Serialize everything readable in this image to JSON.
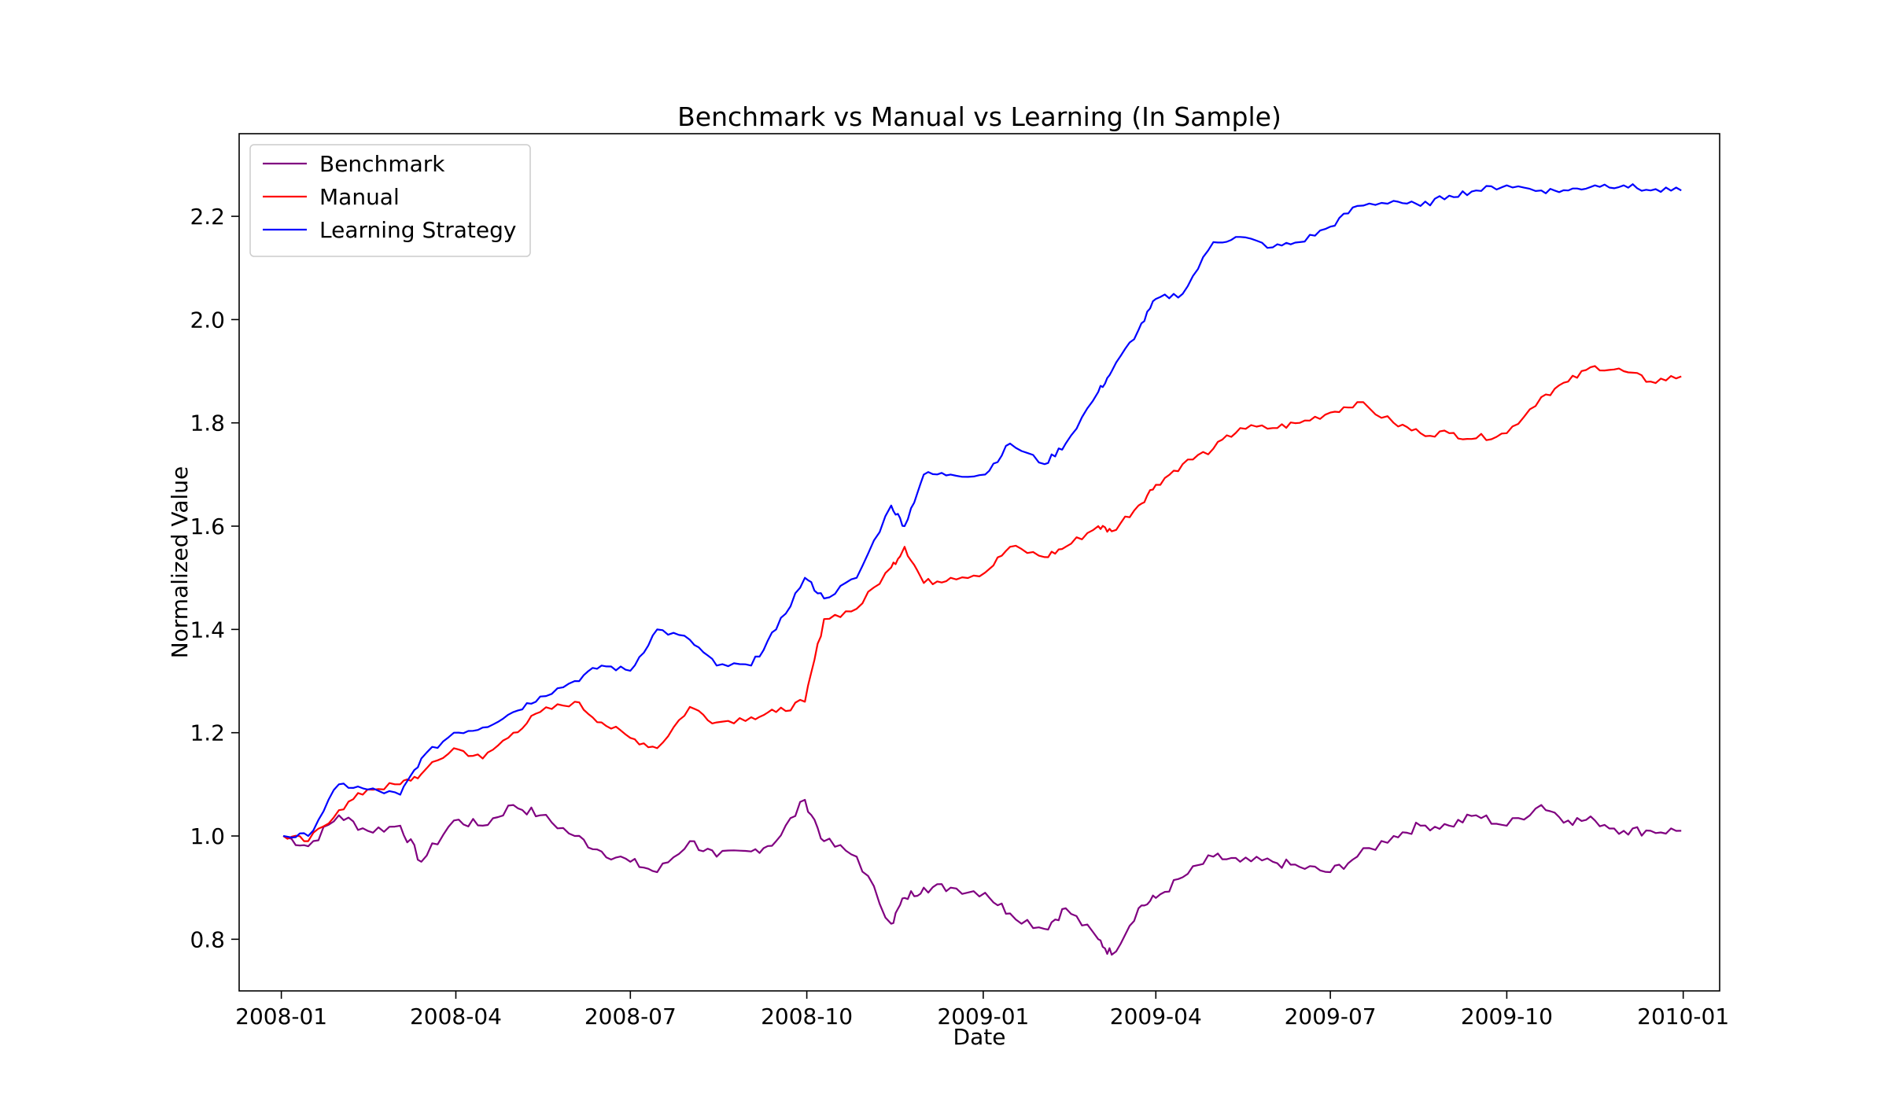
{
  "chart_data": {
    "type": "line",
    "title": "Benchmark vs Manual vs Learning (In Sample)",
    "xlabel": "Date",
    "ylabel": "Normalized Value",
    "xlim": [
      "2007-12-10",
      "2010-01-20"
    ],
    "ylim": [
      0.7,
      2.36
    ],
    "x_ticks": [
      "2008-01",
      "2008-04",
      "2008-07",
      "2008-10",
      "2009-01",
      "2009-04",
      "2009-07",
      "2009-10",
      "2010-01"
    ],
    "y_ticks": [
      "0.8",
      "1.0",
      "1.2",
      "1.4",
      "1.6",
      "1.8",
      "2.0",
      "2.2"
    ],
    "grid": false,
    "legend_position": "upper-left",
    "series": [
      {
        "name": "Benchmark",
        "color": "#800080",
        "x": [
          "2008-01-02",
          "2008-01-15",
          "2008-01-31",
          "2008-02-15",
          "2008-03-03",
          "2008-03-14",
          "2008-03-31",
          "2008-04-15",
          "2008-05-01",
          "2008-05-15",
          "2008-06-02",
          "2008-06-16",
          "2008-07-01",
          "2008-07-15",
          "2008-08-01",
          "2008-08-15",
          "2008-09-02",
          "2008-09-15",
          "2008-09-30",
          "2008-10-10",
          "2008-10-27",
          "2008-11-14",
          "2008-11-21",
          "2008-12-01",
          "2008-12-15",
          "2009-01-02",
          "2009-01-15",
          "2009-02-02",
          "2009-02-13",
          "2009-03-02",
          "2009-03-09",
          "2009-03-23",
          "2009-04-01",
          "2009-04-15",
          "2009-05-01",
          "2009-05-15",
          "2009-06-01",
          "2009-06-15",
          "2009-07-01",
          "2009-07-15",
          "2009-08-03",
          "2009-08-17",
          "2009-09-01",
          "2009-09-15",
          "2009-10-01",
          "2009-10-19",
          "2009-11-02",
          "2009-11-16",
          "2009-12-01",
          "2009-12-15",
          "2009-12-31"
        ],
        "values": [
          1.0,
          0.98,
          1.04,
          1.01,
          1.02,
          0.95,
          1.03,
          1.02,
          1.06,
          1.04,
          1.0,
          0.97,
          0.95,
          0.93,
          0.99,
          0.96,
          0.97,
          0.99,
          1.07,
          0.99,
          0.96,
          0.83,
          0.88,
          0.9,
          0.9,
          0.89,
          0.85,
          0.82,
          0.86,
          0.8,
          0.77,
          0.86,
          0.88,
          0.92,
          0.96,
          0.95,
          0.95,
          0.94,
          0.93,
          0.96,
          1.0,
          1.02,
          1.02,
          1.04,
          1.02,
          1.06,
          1.03,
          1.03,
          1.01,
          1.01,
          1.01
        ]
      },
      {
        "name": "Manual",
        "color": "#ff0000",
        "x": [
          "2008-01-02",
          "2008-01-15",
          "2008-01-31",
          "2008-02-15",
          "2008-03-03",
          "2008-03-14",
          "2008-03-31",
          "2008-04-15",
          "2008-05-01",
          "2008-05-15",
          "2008-06-02",
          "2008-06-16",
          "2008-07-01",
          "2008-07-15",
          "2008-08-01",
          "2008-08-15",
          "2008-09-02",
          "2008-09-15",
          "2008-09-30",
          "2008-10-10",
          "2008-10-27",
          "2008-11-14",
          "2008-11-21",
          "2008-12-01",
          "2008-12-15",
          "2009-01-02",
          "2009-01-15",
          "2009-02-02",
          "2009-02-13",
          "2009-03-02",
          "2009-03-09",
          "2009-03-23",
          "2009-04-01",
          "2009-04-15",
          "2009-05-01",
          "2009-05-15",
          "2009-06-01",
          "2009-06-15",
          "2009-07-01",
          "2009-07-15",
          "2009-08-03",
          "2009-08-17",
          "2009-09-01",
          "2009-09-15",
          "2009-10-01",
          "2009-10-19",
          "2009-11-02",
          "2009-11-16",
          "2009-12-01",
          "2009-12-15",
          "2009-12-31"
        ],
        "values": [
          1.0,
          0.99,
          1.05,
          1.09,
          1.1,
          1.12,
          1.17,
          1.15,
          1.2,
          1.24,
          1.26,
          1.22,
          1.19,
          1.17,
          1.25,
          1.22,
          1.23,
          1.24,
          1.26,
          1.42,
          1.44,
          1.52,
          1.56,
          1.49,
          1.5,
          1.51,
          1.56,
          1.54,
          1.56,
          1.6,
          1.59,
          1.64,
          1.68,
          1.72,
          1.75,
          1.79,
          1.79,
          1.8,
          1.82,
          1.84,
          1.8,
          1.78,
          1.78,
          1.77,
          1.78,
          1.85,
          1.88,
          1.91,
          1.9,
          1.88,
          1.89
        ]
      },
      {
        "name": "Learning Strategy",
        "color": "#0000ff",
        "x": [
          "2008-01-02",
          "2008-01-15",
          "2008-01-31",
          "2008-02-15",
          "2008-03-03",
          "2008-03-14",
          "2008-03-31",
          "2008-04-15",
          "2008-05-01",
          "2008-05-15",
          "2008-06-02",
          "2008-06-16",
          "2008-07-01",
          "2008-07-15",
          "2008-08-01",
          "2008-08-15",
          "2008-09-02",
          "2008-09-15",
          "2008-09-30",
          "2008-10-10",
          "2008-10-27",
          "2008-11-14",
          "2008-11-21",
          "2008-12-01",
          "2008-12-15",
          "2009-01-02",
          "2009-01-15",
          "2009-02-02",
          "2009-02-13",
          "2009-03-02",
          "2009-03-09",
          "2009-03-23",
          "2009-04-01",
          "2009-04-15",
          "2009-05-01",
          "2009-05-15",
          "2009-06-01",
          "2009-06-15",
          "2009-07-01",
          "2009-07-15",
          "2009-08-03",
          "2009-08-17",
          "2009-09-01",
          "2009-09-15",
          "2009-10-01",
          "2009-10-19",
          "2009-11-02",
          "2009-11-16",
          "2009-12-01",
          "2009-12-15",
          "2009-12-31"
        ],
        "values": [
          1.0,
          1.0,
          1.1,
          1.09,
          1.08,
          1.15,
          1.2,
          1.21,
          1.24,
          1.27,
          1.3,
          1.33,
          1.32,
          1.4,
          1.38,
          1.33,
          1.33,
          1.4,
          1.5,
          1.46,
          1.5,
          1.64,
          1.6,
          1.7,
          1.7,
          1.7,
          1.76,
          1.72,
          1.76,
          1.86,
          1.9,
          1.98,
          2.04,
          2.05,
          2.15,
          2.16,
          2.14,
          2.15,
          2.18,
          2.22,
          2.23,
          2.22,
          2.24,
          2.25,
          2.26,
          2.25,
          2.25,
          2.26,
          2.26,
          2.25,
          2.25
        ]
      }
    ]
  }
}
